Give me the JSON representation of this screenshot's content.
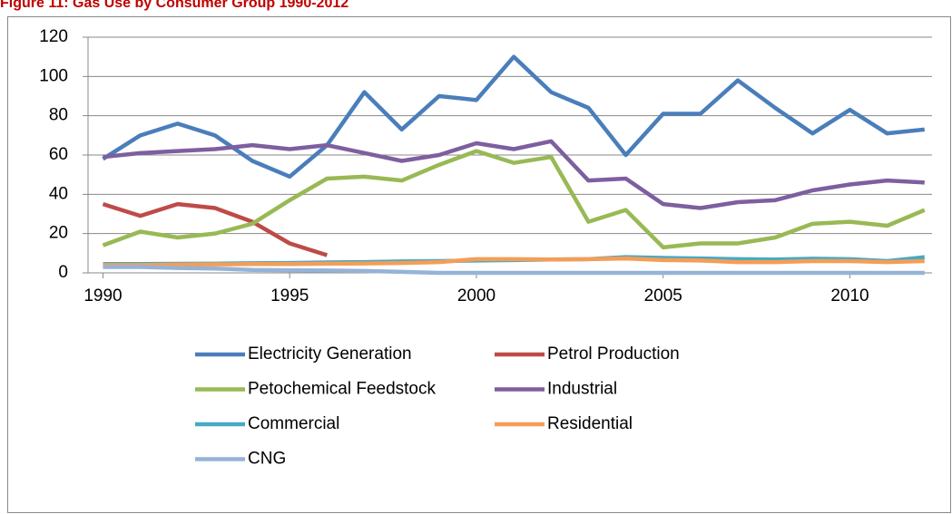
{
  "chart_data": {
    "type": "line",
    "title": "Figure 11: Gas Use by Consumer Group 1990-2012",
    "x": [
      1990,
      1991,
      1992,
      1993,
      1994,
      1995,
      1996,
      1997,
      1998,
      1999,
      2000,
      2001,
      2002,
      2003,
      2004,
      2005,
      2006,
      2007,
      2008,
      2009,
      2010,
      2011,
      2012
    ],
    "xlim": [
      1989.6,
      2012.2
    ],
    "xticks": [
      1990,
      1995,
      2000,
      2005,
      2010
    ],
    "ylim": [
      0,
      120
    ],
    "yticks": [
      0,
      20,
      40,
      60,
      80,
      100,
      120
    ],
    "grid": true,
    "legend": "bottom",
    "series": [
      {
        "name": "Electricity Generation",
        "color": "#4a7ebb",
        "values": [
          58,
          70,
          76,
          70,
          57,
          49,
          65,
          92,
          73,
          90,
          88,
          110,
          92,
          84,
          60,
          81,
          81,
          98,
          84,
          71,
          83,
          71,
          73
        ]
      },
      {
        "name": "Petrol Production",
        "color": "#be4b48",
        "values": [
          35,
          29,
          35,
          33,
          26,
          15,
          9,
          null,
          null,
          null,
          null,
          null,
          null,
          null,
          null,
          null,
          null,
          null,
          null,
          null,
          null,
          null,
          null
        ]
      },
      {
        "name": "Petochemical Feedstock",
        "color": "#98b954",
        "values": [
          14,
          21,
          18,
          20,
          25,
          37,
          48,
          49,
          47,
          55,
          62,
          56,
          59,
          26,
          32,
          13,
          15,
          15,
          18,
          25,
          26,
          24,
          32
        ]
      },
      {
        "name": "Industrial",
        "color": "#7d5fa0",
        "values": [
          59,
          61,
          62,
          63,
          65,
          63,
          65,
          61,
          57,
          60,
          66,
          63,
          67,
          47,
          48,
          35,
          33,
          36,
          37,
          42,
          45,
          47,
          46
        ]
      },
      {
        "name": "Commercial",
        "color": "#46aac5",
        "values": [
          4.5,
          4.5,
          4.6,
          4.7,
          4.9,
          5,
          5.3,
          5.5,
          5.8,
          6,
          6.3,
          6.5,
          6.8,
          7,
          8,
          7.6,
          7.3,
          7,
          6.8,
          7.2,
          7,
          6,
          8
        ]
      },
      {
        "name": "Residential",
        "color": "#f59d56",
        "values": [
          4,
          4,
          4.2,
          4.3,
          4.5,
          4.5,
          4.7,
          4.8,
          5,
          5.5,
          7,
          7,
          6.8,
          7,
          7.3,
          6.5,
          6.3,
          5.5,
          5.5,
          6,
          6,
          5.5,
          6
        ]
      },
      {
        "name": "CNG",
        "color": "#95b3d7",
        "values": [
          3,
          3,
          2.5,
          2.2,
          1.5,
          1.3,
          1.2,
          1,
          0.5,
          0,
          0,
          0,
          0,
          0,
          0,
          0,
          0,
          0,
          0,
          0,
          0,
          0,
          0
        ]
      }
    ]
  }
}
